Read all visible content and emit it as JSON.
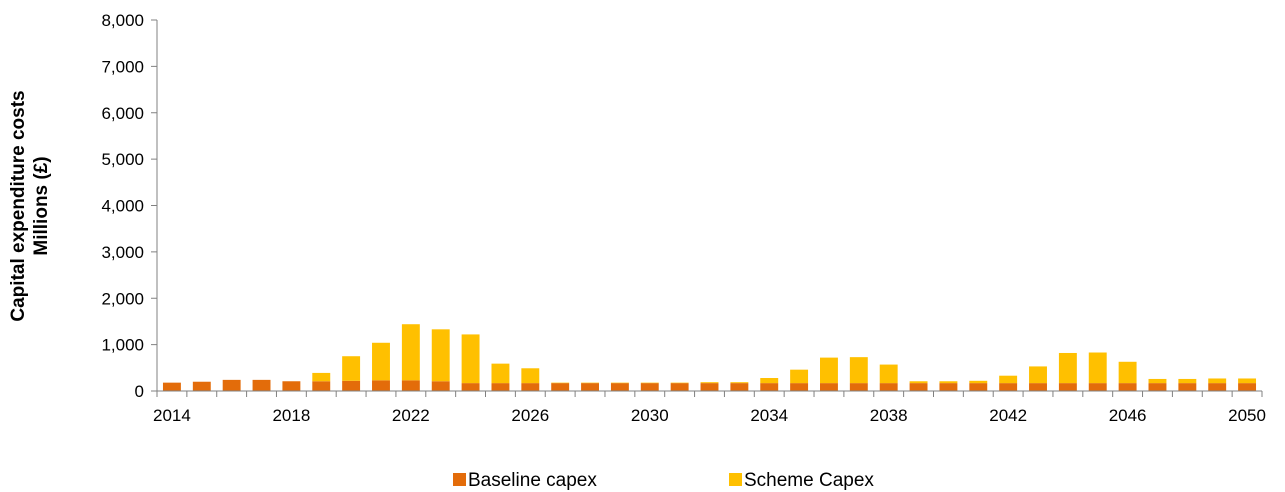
{
  "chart_data": {
    "type": "bar",
    "stacked": true,
    "ylabel_lines": [
      "Capital expenditure costs",
      "Millions (£)"
    ],
    "ylim": [
      0,
      8000
    ],
    "yticks": [
      0,
      1000,
      2000,
      3000,
      4000,
      5000,
      6000,
      7000,
      8000
    ],
    "ytick_labels": [
      "0",
      "1,000",
      "2,000",
      "3,000",
      "4,000",
      "5,000",
      "6,000",
      "7,000",
      "8,000"
    ],
    "x": [
      2014,
      2015,
      2016,
      2017,
      2018,
      2019,
      2020,
      2021,
      2022,
      2023,
      2024,
      2025,
      2026,
      2027,
      2028,
      2029,
      2030,
      2031,
      2032,
      2033,
      2034,
      2035,
      2036,
      2037,
      2038,
      2039,
      2040,
      2041,
      2042,
      2043,
      2044,
      2045,
      2046,
      2047,
      2048,
      2049,
      2050
    ],
    "xtick_labels": [
      "2014",
      "2018",
      "2022",
      "2026",
      "2030",
      "2034",
      "2038",
      "2042",
      "2046",
      "2050"
    ],
    "grid": false,
    "legend_position": "bottom-center",
    "colors": {
      "baseline": "#E36C0A",
      "scheme": "#FFC000",
      "axis": "#808080"
    },
    "series": [
      {
        "name": "Baseline capex",
        "values": [
          180,
          200,
          240,
          240,
          210,
          210,
          220,
          230,
          230,
          210,
          170,
          170,
          170,
          170,
          170,
          170,
          170,
          170,
          170,
          170,
          170,
          170,
          170,
          170,
          170,
          170,
          170,
          170,
          170,
          170,
          170,
          170,
          170,
          170,
          170,
          170,
          170
        ]
      },
      {
        "name": "Scheme Capex",
        "values": [
          0,
          0,
          0,
          0,
          0,
          180,
          530,
          810,
          1210,
          1120,
          1050,
          420,
          320,
          10,
          10,
          10,
          10,
          10,
          20,
          20,
          110,
          290,
          550,
          560,
          400,
          40,
          40,
          50,
          160,
          360,
          650,
          660,
          460,
          90,
          90,
          100,
          100
        ]
      }
    ]
  }
}
